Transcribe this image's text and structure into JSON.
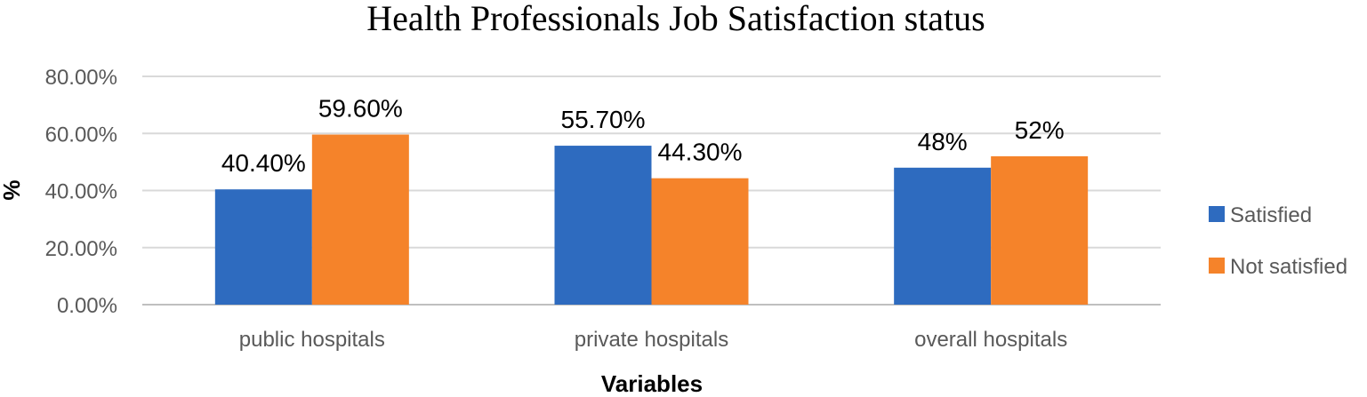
{
  "chart_data": {
    "type": "bar",
    "title": "Health Professionals Job Satisfaction status",
    "xlabel": "Variables",
    "ylabel": "%",
    "categories": [
      "public hospitals",
      "private hospitals",
      "overall hospitals"
    ],
    "series": [
      {
        "name": "Satisfied",
        "color": "#2E6BBF",
        "values": [
          40.4,
          55.7,
          48
        ],
        "labels": [
          "40.40%",
          "55.70%",
          "48%"
        ]
      },
      {
        "name": "Not satisfied",
        "color": "#F5832A",
        "values": [
          59.6,
          44.3,
          52
        ],
        "labels": [
          "59.60%",
          "44.30%",
          "52%"
        ]
      }
    ],
    "ylim": [
      0,
      80
    ],
    "yticks": [
      0,
      20,
      40,
      60,
      80
    ],
    "ytick_labels": [
      "0.00%",
      "20.00%",
      "40.00%",
      "60.00%",
      "80.00%"
    ],
    "grid": true,
    "legend": "right"
  }
}
